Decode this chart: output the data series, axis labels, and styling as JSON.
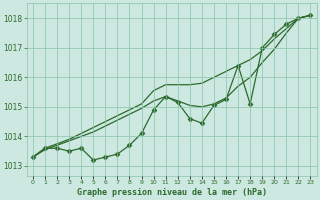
{
  "x": [
    0,
    1,
    2,
    3,
    4,
    5,
    6,
    7,
    8,
    9,
    10,
    11,
    12,
    13,
    14,
    15,
    16,
    17,
    18,
    19,
    20,
    21,
    22,
    23
  ],
  "line_zigzag": [
    1013.3,
    1013.6,
    1013.6,
    1013.5,
    1013.6,
    1013.2,
    1013.3,
    1013.4,
    1013.7,
    1014.1,
    1014.9,
    1015.35,
    1015.15,
    1014.6,
    1014.45,
    1015.05,
    1015.25,
    1016.4,
    1015.1,
    1017.0,
    1017.45,
    1017.8,
    1018.0,
    1018.1
  ],
  "line_upper": [
    1013.3,
    1013.6,
    1013.75,
    1013.9,
    1014.1,
    1014.3,
    1014.5,
    1014.7,
    1014.9,
    1015.1,
    1015.55,
    1015.75,
    1015.75,
    1015.75,
    1015.8,
    1016.0,
    1016.2,
    1016.4,
    1016.6,
    1016.9,
    1017.3,
    1017.65,
    1018.0,
    1018.1
  ],
  "line_lower": [
    1013.3,
    1013.55,
    1013.7,
    1013.85,
    1014.0,
    1014.15,
    1014.35,
    1014.55,
    1014.75,
    1014.95,
    1015.2,
    1015.35,
    1015.2,
    1015.05,
    1015.0,
    1015.1,
    1015.3,
    1015.7,
    1016.0,
    1016.5,
    1016.95,
    1017.5,
    1018.0,
    1018.1
  ],
  "bg_color": "#cce8e0",
  "line_color": "#2d6a2d",
  "grid_color": "#88c4a8",
  "ylabel_ticks": [
    1013,
    1014,
    1015,
    1016,
    1017,
    1018
  ],
  "ylim": [
    1012.65,
    1018.5
  ],
  "xlim": [
    -0.5,
    23.5
  ],
  "xlabel": "Graphe pression niveau de la mer (hPa)"
}
